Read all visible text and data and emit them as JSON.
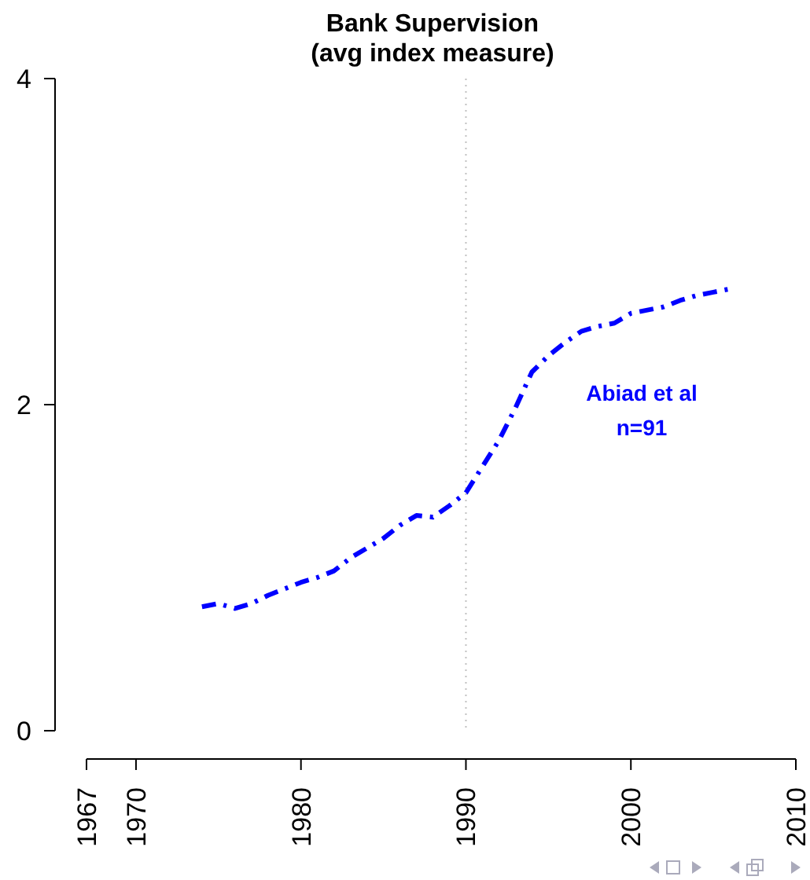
{
  "chart_data": {
    "type": "line",
    "title": "Bank Supervision",
    "subtitle": "(avg index measure)",
    "x": [
      1974,
      1975,
      1976,
      1977,
      1978,
      1979,
      1980,
      1981,
      1982,
      1983,
      1984,
      1985,
      1986,
      1987,
      1988,
      1989,
      1990,
      1991,
      1992,
      1993,
      1994,
      1995,
      1996,
      1997,
      1998,
      1999,
      2000,
      2001,
      2002,
      2003,
      2004,
      2005,
      2006
    ],
    "series": [
      {
        "name": "Abiad et al",
        "color": "#0000ff",
        "values": [
          0.76,
          0.78,
          0.75,
          0.78,
          0.83,
          0.87,
          0.91,
          0.94,
          0.98,
          1.06,
          1.12,
          1.18,
          1.26,
          1.32,
          1.31,
          1.38,
          1.46,
          1.62,
          1.78,
          1.98,
          2.2,
          2.3,
          2.38,
          2.45,
          2.48,
          2.5,
          2.56,
          2.58,
          2.6,
          2.64,
          2.67,
          2.69,
          2.71
        ]
      }
    ],
    "annotations": [
      "n=91"
    ],
    "xlim": [
      1967,
      2010
    ],
    "xticks": [
      1967,
      1970,
      1980,
      1990,
      2000,
      2010
    ],
    "ylim": [
      0,
      4
    ],
    "yticks": [
      0,
      2,
      4
    ],
    "ref_lines": [
      {
        "axis": "x",
        "value": 1990,
        "color": "#c0c0c0",
        "line_style": "dotted"
      }
    ],
    "line_style": "dashed",
    "grid": false
  }
}
